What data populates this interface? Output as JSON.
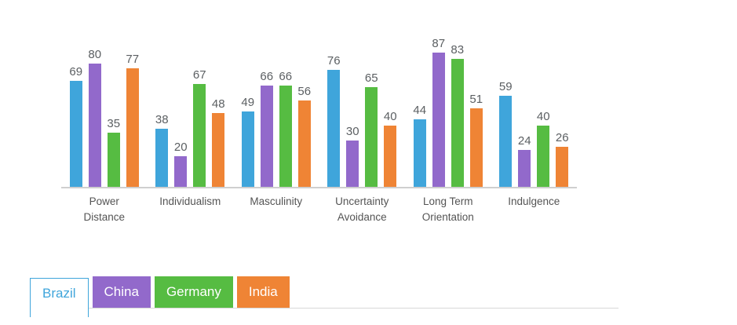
{
  "chart_data": {
    "type": "bar",
    "title": "",
    "xlabel": "",
    "ylabel": "",
    "ylim": [
      0,
      100
    ],
    "grid": false,
    "value_labels": true,
    "legend_position": "bottom-tabs",
    "categories": [
      "Power Distance",
      "Individualism",
      "Masculinity",
      "Uncertainty Avoidance",
      "Long Term Orientation",
      "Indulgence"
    ],
    "series": [
      {
        "name": "Brazil",
        "color": "#3FA5DB",
        "values": [
          69,
          38,
          49,
          76,
          44,
          59
        ]
      },
      {
        "name": "China",
        "color": "#9269CB",
        "values": [
          80,
          20,
          66,
          30,
          87,
          24
        ]
      },
      {
        "name": "Germany",
        "color": "#56BC42",
        "values": [
          35,
          67,
          66,
          65,
          83,
          40
        ]
      },
      {
        "name": "India",
        "color": "#EF8435",
        "values": [
          77,
          48,
          56,
          40,
          51,
          26
        ]
      }
    ]
  },
  "tabs": {
    "items": [
      {
        "label": "Brazil",
        "color": "#3FA5DB",
        "active": true
      },
      {
        "label": "China",
        "color": "#9269CB",
        "active": false
      },
      {
        "label": "Germany",
        "color": "#56BC42",
        "active": false
      },
      {
        "label": "India",
        "color": "#EF8435",
        "active": false
      }
    ]
  },
  "colors": {
    "axis_line": "#cfcfcf",
    "tab_rule": "#d8d8d8",
    "value_label_text": "#5b5f62",
    "category_label_text": "#545454",
    "background": "#ffffff"
  }
}
